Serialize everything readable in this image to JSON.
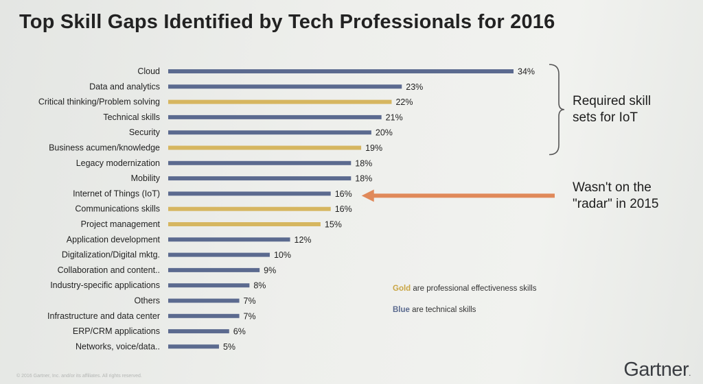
{
  "slide": {
    "title": "Top Skill Gaps Identified by Tech Professionals for 2016",
    "annotation_iot_line1": "Required skill",
    "annotation_iot_line2": "sets for IoT",
    "annotation_radar_line1": "Wasn't on the",
    "annotation_radar_line2": "\"radar\" in 2015",
    "legend_gold_word": "Gold",
    "legend_gold_rest": " are professional effectiveness skills",
    "legend_blue_word": "Blue",
    "legend_blue_rest": " are technical skills",
    "brand": "Gartner",
    "brand_dot": ".",
    "footer": "© 2016 Gartner, Inc. and/or its affiliates. All rights reserved."
  },
  "colors": {
    "blue": "#5b6a8f",
    "gold": "#d6b660",
    "arrow": "#e0895a",
    "brace": "#555555"
  },
  "chart_data": {
    "type": "bar",
    "orientation": "horizontal",
    "title": "Top Skill Gaps Identified by Tech Professionals for 2016",
    "xlabel": "",
    "ylabel": "",
    "xlim": [
      0,
      34
    ],
    "value_suffix": "%",
    "categories": [
      "Cloud",
      "Data and analytics",
      "Critical thinking/Problem solving",
      "Technical skills",
      "Security",
      "Business acumen/knowledge",
      "Legacy modernization",
      "Mobility",
      "Internet of Things (IoT)",
      "Communications skills",
      "Project management",
      "Application development",
      "Digitalization/Digital mktg.",
      "Collaboration and content..",
      "Industry-specific applications",
      "Others",
      "Infrastructure and data center",
      "ERP/CRM applications",
      "Networks, voice/data.."
    ],
    "values": [
      34,
      23,
      22,
      21,
      20,
      19,
      18,
      18,
      16,
      16,
      15,
      12,
      10,
      9,
      8,
      7,
      7,
      6,
      5
    ],
    "groups": [
      "blue",
      "blue",
      "gold",
      "blue",
      "blue",
      "gold",
      "blue",
      "blue",
      "blue",
      "gold",
      "gold",
      "blue",
      "blue",
      "blue",
      "blue",
      "blue",
      "blue",
      "blue",
      "blue"
    ]
  }
}
